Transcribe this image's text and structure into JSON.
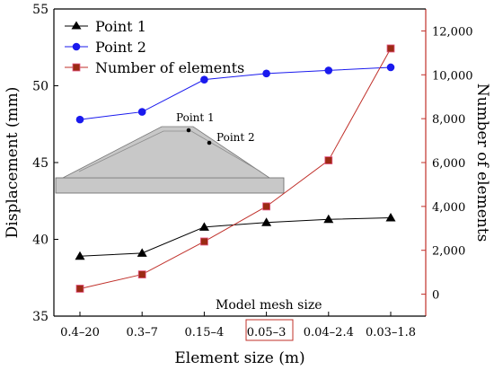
{
  "chart_data": {
    "type": "line",
    "categories": [
      "0.4–20",
      "0.3–7",
      "0.15–4",
      "0.05–3",
      "0.04–2.4",
      "0.03–1.8"
    ],
    "highlighted_category": "0.05–3",
    "xlabel": "Element size (m)",
    "ylabel_left": "Displacement (mm)",
    "ylabel_right": "Number of elements",
    "annotation": "Model mesh size",
    "left_axis": {
      "min": 35,
      "max": 55,
      "ticks": [
        "35",
        "40",
        "45",
        "50",
        "55"
      ],
      "tick_values": [
        35,
        40,
        45,
        50,
        55
      ]
    },
    "right_axis": {
      "min": -1000,
      "max": 13000,
      "ticks": [
        "0",
        "2,000",
        "4,000",
        "6,000",
        "8,000",
        "10,000",
        "12,000"
      ],
      "tick_values": [
        0,
        2000,
        4000,
        6000,
        8000,
        10000,
        12000
      ]
    },
    "series": [
      {
        "name": "Point 1",
        "axis": "left",
        "marker": "triangle",
        "color": "#000000",
        "values": [
          38.9,
          39.1,
          40.8,
          41.1,
          41.3,
          41.4
        ]
      },
      {
        "name": "Point 2",
        "axis": "left",
        "marker": "circle",
        "color": "#1a1aee",
        "values": [
          47.8,
          48.3,
          50.4,
          50.8,
          51.0,
          51.2
        ]
      },
      {
        "name": "Number of elements",
        "axis": "right",
        "marker": "square",
        "color": "#c0302a",
        "values": [
          250,
          900,
          2400,
          4000,
          6100,
          11200
        ]
      }
    ],
    "inset": {
      "labels": [
        "Point 1",
        "Point 2"
      ]
    },
    "colors": {
      "right_axis": "#c0302a",
      "highlight_box": "#c0302a",
      "dam_fill": "#c8c8c8"
    }
  }
}
